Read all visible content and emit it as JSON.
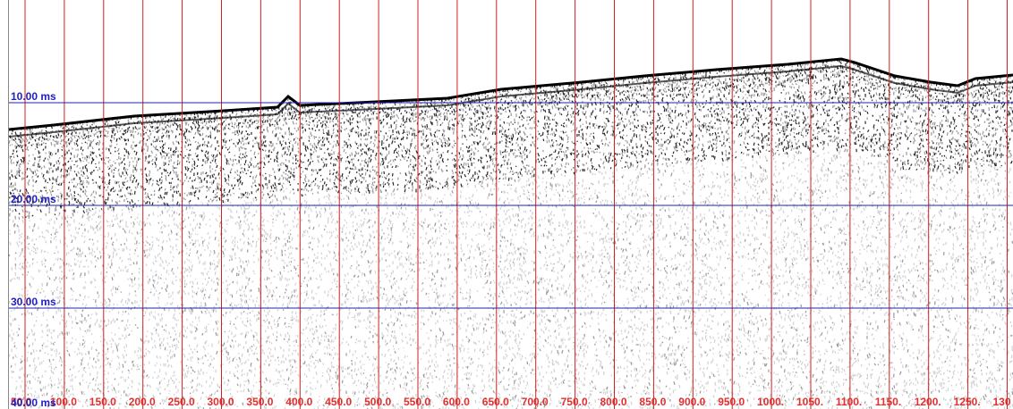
{
  "time_labels": [
    "10.00 ms",
    "20.00 ms",
    "30.00 ms",
    "40.00 ms"
  ],
  "distance_labels": [
    "50.0",
    "100.0",
    "150.0",
    "200.0",
    "250.0",
    "300.0",
    "350.0",
    "400.0",
    "450.0",
    "500.0",
    "550.0",
    "600.0",
    "650.0",
    "700.0",
    "750.0",
    "800.0",
    "850.0",
    "900.0",
    "950.0",
    "1000.",
    "1050.",
    "1100.",
    "1150.",
    "1200.",
    "1250.",
    "130"
  ]
}
